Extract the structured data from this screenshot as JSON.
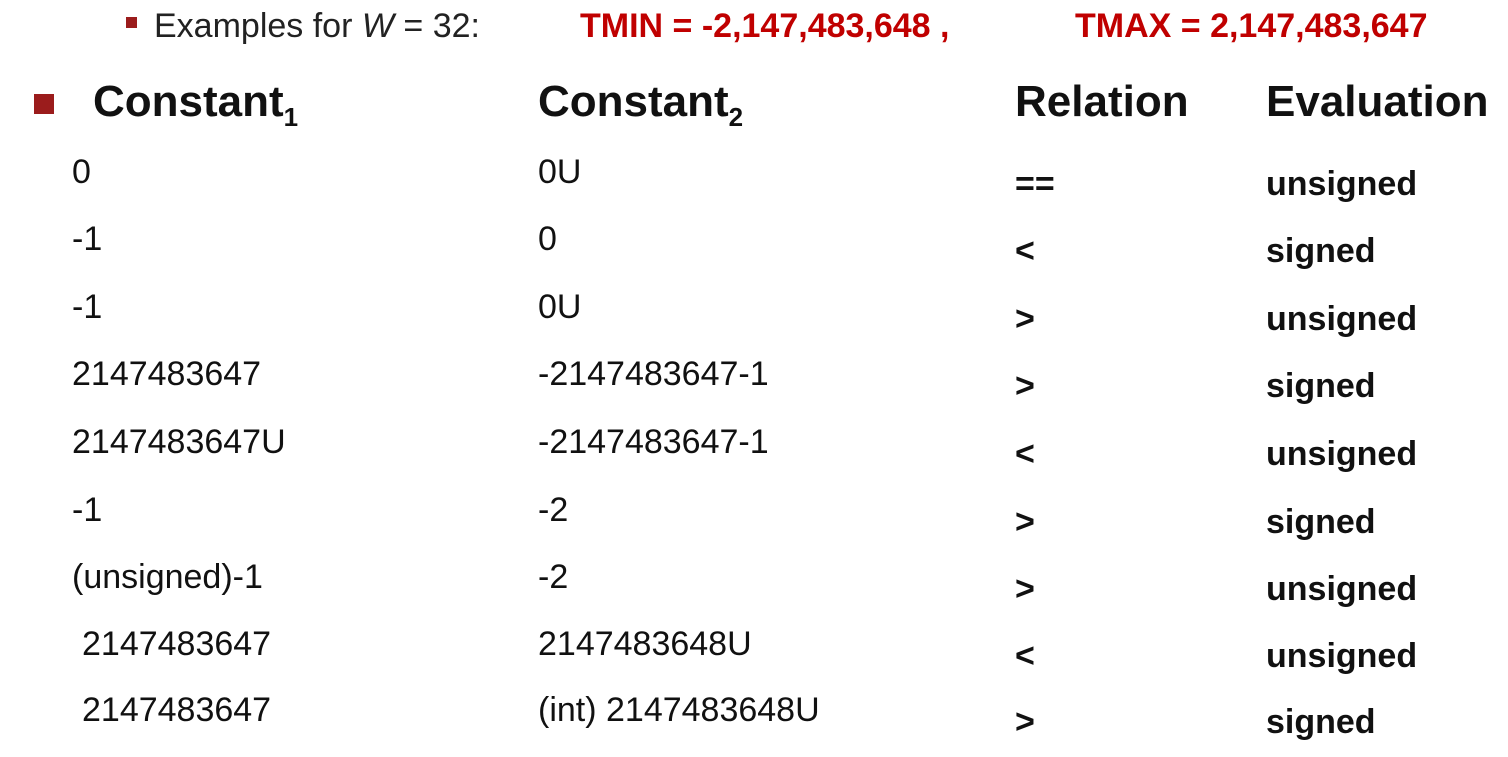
{
  "examples": {
    "prefix": "Examples for ",
    "w_var": "W",
    "suffix": " = 32:",
    "tmin": "TMIN = -2,147,483,648 ,",
    "tmax": "TMAX = 2,147,483,647"
  },
  "colors": {
    "accent_red": "#c00000",
    "bullet_red": "#9b1c1c",
    "text": "#111111"
  },
  "headers": {
    "constant1": "Constant",
    "constant1_sub": "1",
    "constant2": "Constant",
    "constant2_sub": "2",
    "relation": "Relation",
    "evaluation": "Evaluation"
  },
  "rows": [
    {
      "c1": "0",
      "c2": "0U",
      "relation": "==",
      "evaluation": "unsigned"
    },
    {
      "c1": "-1",
      "c2": "0",
      "relation": "<",
      "evaluation": "signed"
    },
    {
      "c1": "-1",
      "c2": "0U",
      "relation": ">",
      "evaluation": "unsigned"
    },
    {
      "c1": "2147483647",
      "c2": "-2147483647-1",
      "relation": ">",
      "evaluation": "signed"
    },
    {
      "c1": "2147483647U",
      "c2": "-2147483647-1",
      "relation": "<",
      "evaluation": "unsigned"
    },
    {
      "c1": "-1",
      "c2": "-2",
      "relation": ">",
      "evaluation": "signed"
    },
    {
      "c1": "(unsigned)-1",
      "c2": "-2",
      "relation": ">",
      "evaluation": "unsigned"
    },
    {
      "c1": "2147483647",
      "c2": "2147483648U",
      "relation": "<",
      "evaluation": "unsigned"
    },
    {
      "c1": "2147483647",
      "c2": "(int) 2147483648U",
      "relation": ">",
      "evaluation": "signed"
    }
  ]
}
